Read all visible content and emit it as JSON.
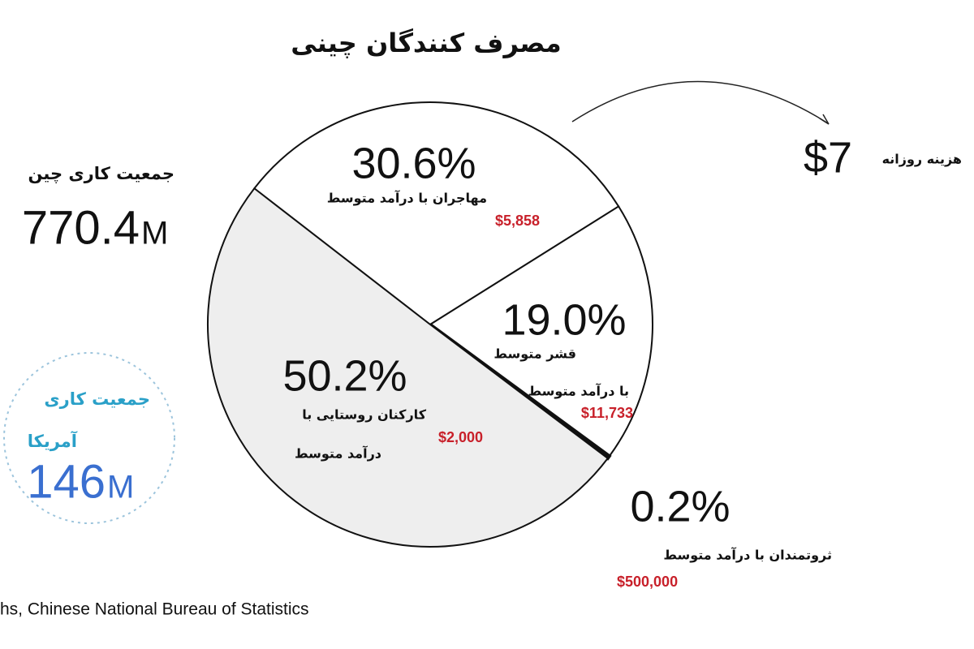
{
  "chart_data": {
    "type": "pie",
    "title": "مصرف کنندگان چینی",
    "categories": [
      [
        "مهاجران با درآمد متوسط"
      ],
      [
        "قشر متوسط",
        "با درآمد متوسط"
      ],
      [
        "ثروتمندان با درآمد متوسط"
      ],
      [
        "کارکنان روستایی با",
        "درآمد متوسط"
      ]
    ],
    "values": [
      30.6,
      19.0,
      0.2,
      50.2
    ],
    "value_labels": [
      "30.6%",
      "19.0%",
      "0.2%",
      "50.2%"
    ],
    "incomes": [
      "$5,858",
      "$11,733",
      "$500,000",
      "$2,000"
    ],
    "colors": [
      "#ffffff",
      "#ffffff",
      "#ffffff",
      "#eeeeee"
    ]
  },
  "china_workforce": {
    "label": "جمعیت کاری چین",
    "value": "770.4",
    "unit": "M"
  },
  "us_workforce": {
    "label": [
      "جمعیت کاری",
      "آمریکا"
    ],
    "value": "146",
    "unit": "M"
  },
  "daily_spend": {
    "value": "$7",
    "label": "هزینه روزانه"
  },
  "source": "hs, Chinese National Bureau of Statistics"
}
